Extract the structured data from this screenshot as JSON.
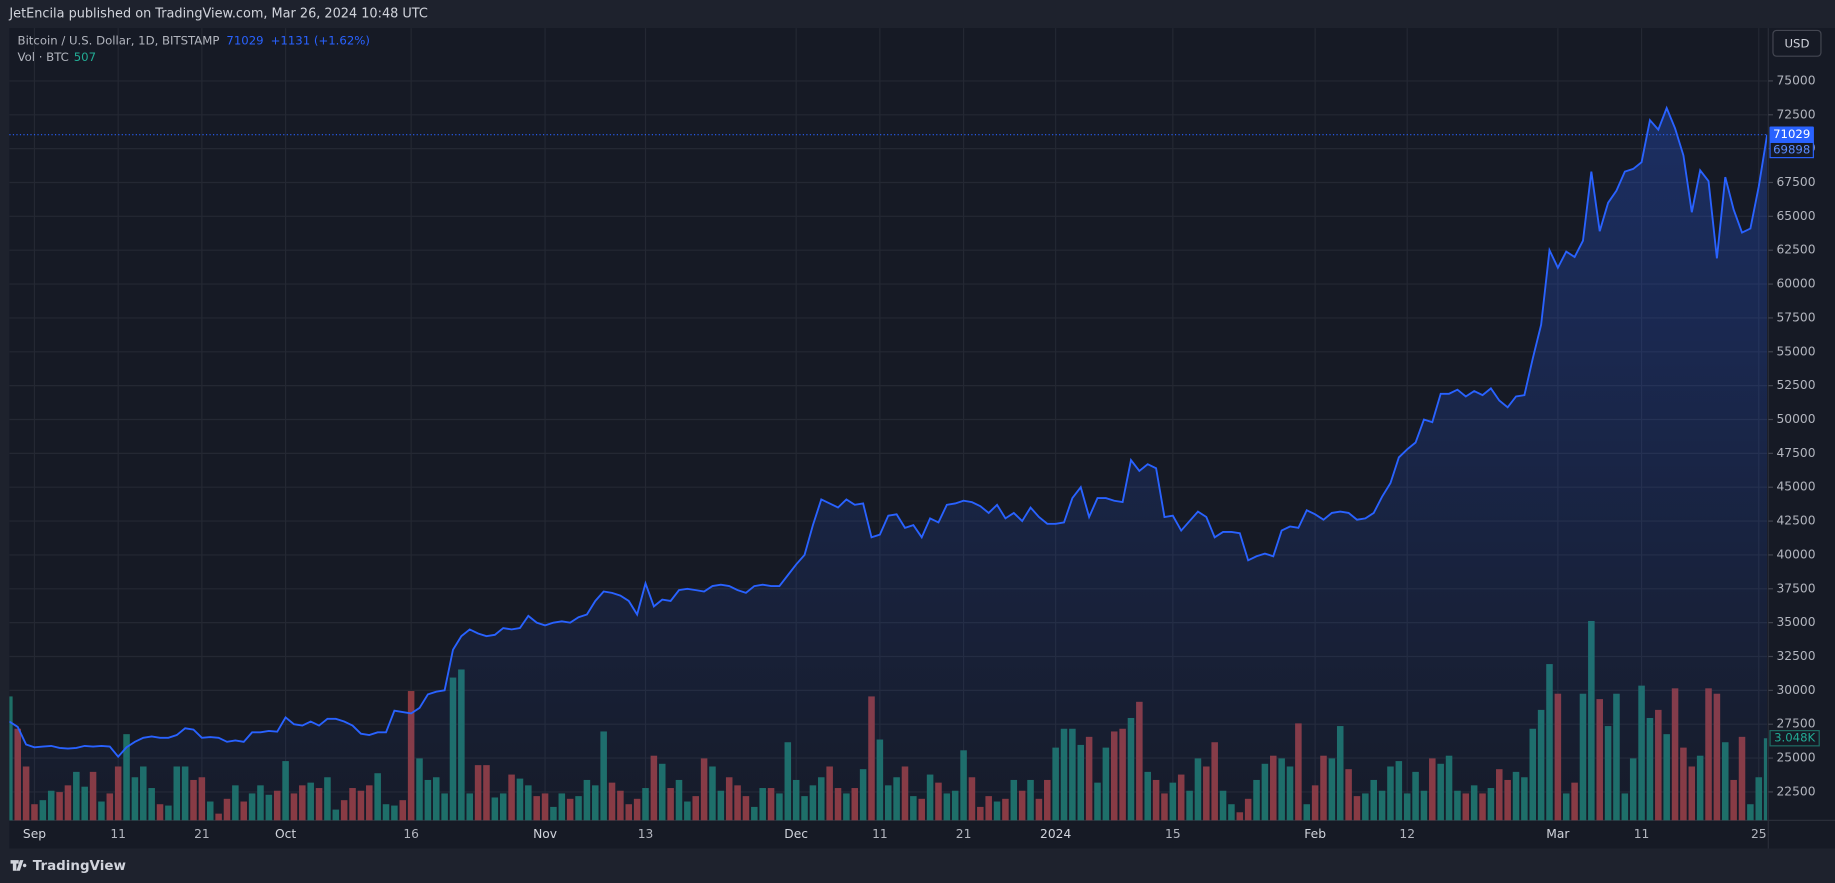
{
  "chart_data": {
    "type": "line",
    "title": "JetEncila published on TradingView.com, Mar 26, 2024 10:48 UTC",
    "currency": "USD",
    "brand": "TradingView",
    "change": "+1131 (+1.62%)",
    "volume_value": 507,
    "reference_price": 69898,
    "grid": true,
    "xlim": [
      0,
      210
    ],
    "xticks": [
      {
        "value": 3,
        "label": "Sep"
      },
      {
        "value": 13,
        "label": "11"
      },
      {
        "value": 23,
        "label": "21"
      },
      {
        "value": 33,
        "label": "Oct"
      },
      {
        "value": 48,
        "label": "16"
      },
      {
        "value": 64,
        "label": "Nov"
      },
      {
        "value": 76,
        "label": "13"
      },
      {
        "value": 94,
        "label": "Dec"
      },
      {
        "value": 104,
        "label": "11"
      },
      {
        "value": 114,
        "label": "21"
      },
      {
        "value": 125,
        "label": "2024"
      },
      {
        "value": 139,
        "label": "15"
      },
      {
        "value": 156,
        "label": "Feb"
      },
      {
        "value": 167,
        "label": "12"
      },
      {
        "value": 185,
        "label": "Mar"
      },
      {
        "value": 195,
        "label": "11"
      },
      {
        "value": 209,
        "label": "25"
      }
    ],
    "ylim": [
      20400,
      78900
    ],
    "yticks": [
      22500,
      25000,
      27500,
      30000,
      32500,
      35000,
      37500,
      40000,
      42500,
      45000,
      47500,
      50000,
      52500,
      55000,
      57500,
      60000,
      62500,
      65000,
      67500,
      70000,
      72500,
      75000
    ],
    "y2lim": [
      0,
      29400
    ],
    "series": [
      {
        "name": "Bitcoin / U.S. Dollar, 1D, BITSTAMP",
        "color": "#2962ff",
        "values": [
          27700,
          27300,
          26000,
          25800,
          25850,
          25900,
          25750,
          25700,
          25750,
          25900,
          25850,
          25900,
          25850,
          25100,
          25800,
          26200,
          26500,
          26600,
          26500,
          26500,
          26700,
          27200,
          27100,
          26500,
          26550,
          26500,
          26200,
          26300,
          26200,
          26900,
          26900,
          27000,
          26950,
          28000,
          27500,
          27400,
          27700,
          27400,
          27900,
          27900,
          27700,
          27400,
          26800,
          26700,
          26900,
          26900,
          28500,
          28400,
          28300,
          28700,
          29700,
          29900,
          30000,
          33000,
          34000,
          34500,
          34200,
          34000,
          34100,
          34600,
          34500,
          34600,
          35500,
          35000,
          34800,
          35000,
          35100,
          35000,
          35400,
          35600,
          36600,
          37300,
          37200,
          37000,
          36600,
          35600,
          37900,
          36200,
          36700,
          36600,
          37400,
          37500,
          37400,
          37300,
          37700,
          37800,
          37700,
          37400,
          37200,
          37700,
          37800,
          37700,
          37700,
          38500,
          39300,
          40000,
          42200,
          44100,
          43800,
          43500,
          44100,
          43700,
          43800,
          41300,
          41500,
          42900,
          43000,
          42000,
          42200,
          41300,
          42700,
          42400,
          43700,
          43800,
          44000,
          43900,
          43600,
          43100,
          43700,
          42700,
          43100,
          42500,
          43500,
          42800,
          42300,
          42300,
          42400,
          44200,
          45000,
          42800,
          44200,
          44200,
          44000,
          43900,
          47000,
          46200,
          46700,
          46400,
          42800,
          42900,
          41800,
          42500,
          43200,
          42800,
          41300,
          41700,
          41700,
          41600,
          39600,
          39900,
          40100,
          39900,
          41800,
          42100,
          42000,
          43300,
          43000,
          42600,
          43100,
          43200,
          43100,
          42600,
          42700,
          43100,
          44300,
          45300,
          47200,
          47800,
          48300,
          50000,
          49800,
          51900,
          51900,
          52200,
          51700,
          52100,
          51800,
          52300,
          51400,
          50900,
          51700,
          51800,
          54500,
          57000,
          62500,
          61200,
          62400,
          62000,
          63200,
          68300,
          63900,
          66000,
          66900,
          68300,
          68500,
          69000,
          72100,
          71400,
          73000,
          71500,
          69500,
          65300,
          68400,
          67600,
          61900,
          67900,
          65500,
          63800,
          64100,
          67200,
          71029
        ]
      },
      {
        "name": "Vol · BTC",
        "axis": "y2",
        "color": "#1e6f66",
        "down_color": "#8a3a40",
        "last_label": "3.048K",
        "values": [
          4600,
          3400,
          2000,
          600,
          750,
          1100,
          1050,
          1300,
          1800,
          1250,
          1800,
          700,
          1000,
          2000,
          3200,
          1600,
          2000,
          1200,
          600,
          550,
          2000,
          2000,
          1500,
          1600,
          700,
          250,
          800,
          1300,
          700,
          1000,
          1300,
          950,
          1100,
          2200,
          1000,
          1300,
          1400,
          1200,
          1600,
          400,
          750,
          1200,
          1100,
          1300,
          1750,
          600,
          550,
          750,
          4800,
          2300,
          1500,
          1600,
          1000,
          5300,
          5600,
          1000,
          2050,
          2050,
          850,
          1000,
          1700,
          1550,
          1300,
          900,
          1000,
          500,
          1000,
          800,
          900,
          1500,
          1300,
          3300,
          1400,
          1100,
          600,
          800,
          1200,
          2400,
          2100,
          1200,
          1500,
          700,
          900,
          2300,
          2000,
          1100,
          1600,
          1300,
          900,
          500,
          1200,
          1200,
          1000,
          2900,
          1500,
          900,
          1300,
          1600,
          2000,
          1200,
          1000,
          1200,
          1900,
          4600,
          3000,
          1300,
          1600,
          2000,
          900,
          800,
          1700,
          1400,
          1000,
          1100,
          2600,
          1600,
          500,
          900,
          700,
          800,
          1500,
          1100,
          1500,
          800,
          1500,
          2700,
          3400,
          3400,
          2800,
          3100,
          1400,
          2700,
          3300,
          3400,
          3800,
          4400,
          1800,
          1500,
          1000,
          1400,
          1700,
          1100,
          2300,
          2000,
          2900,
          1100,
          600,
          300,
          800,
          1500,
          2100,
          2400,
          2300,
          2000,
          3600,
          600,
          1300,
          2400,
          2300,
          3500,
          1900,
          900,
          1000,
          1500,
          1100,
          2000,
          2200,
          1000,
          1800,
          1100,
          2300,
          2100,
          2400,
          1100,
          1000,
          1300,
          1000,
          1200,
          1900,
          1500,
          1800,
          1600,
          3400,
          4100,
          5800,
          4700,
          1000,
          1400,
          4700,
          7400,
          4500,
          3500,
          4700,
          1000,
          2300,
          5000,
          3800,
          4100,
          3200,
          4900,
          2700,
          2000,
          2400,
          4900,
          4700,
          2900,
          1500,
          3100,
          600,
          1600,
          3048
        ]
      }
    ]
  }
}
